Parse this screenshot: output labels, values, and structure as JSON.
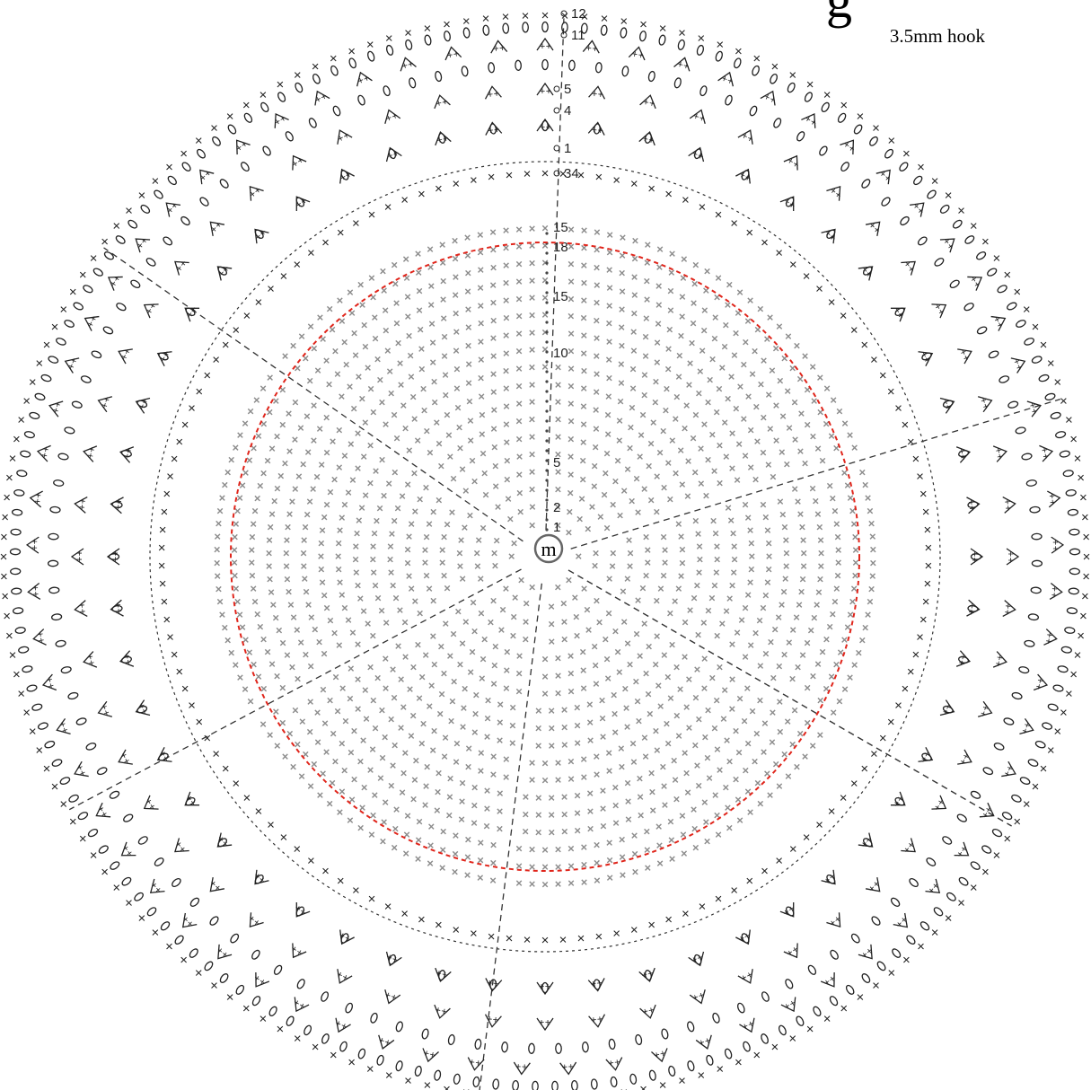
{
  "header": {
    "title_fragment": "g",
    "hook_size": "3.5mm hook"
  },
  "center": {
    "marker": "m"
  },
  "row_labels": {
    "outer": [
      "12",
      "11",
      "5",
      "4",
      "1",
      "34"
    ],
    "inner": [
      "15",
      "18",
      "15",
      "10",
      "5",
      "2",
      "1"
    ]
  },
  "symbols": {
    "single_crochet": "×",
    "chain": "o",
    "dc_cluster": "+"
  },
  "colors": {
    "ink": "#222222",
    "stitch_gray": "#8c8c8c",
    "base_ring": "#e0251b"
  }
}
